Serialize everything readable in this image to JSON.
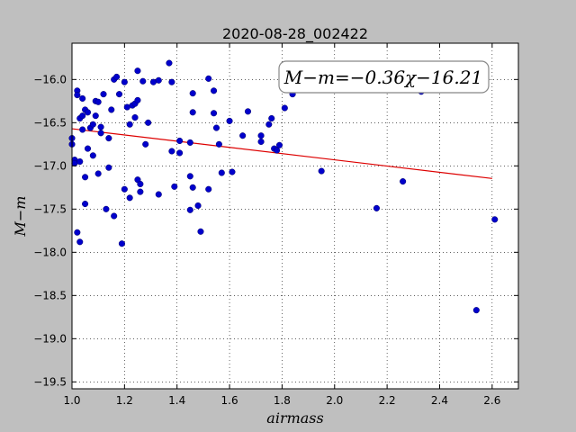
{
  "chart_data": {
    "type": "scatter",
    "title": "2020-08-28_002422",
    "xlabel": "airmass",
    "ylabel": "M−m",
    "xlim": [
      1.0,
      2.7
    ],
    "ylim": [
      -15.58,
      -19.58
    ],
    "x_tick_labels": [
      "1.0",
      "1.2",
      "1.4",
      "1.6",
      "1.8",
      "2.0",
      "2.2",
      "2.4",
      "2.6"
    ],
    "x_ticks": [
      1.0,
      1.2,
      1.4,
      1.6,
      1.8,
      2.0,
      2.2,
      2.4,
      2.6
    ],
    "y_tick_labels": [
      "−16.0",
      "−16.5",
      "−17.0",
      "−17.5",
      "−18.0",
      "−18.5",
      "−19.0",
      "−19.5"
    ],
    "y_ticks": [
      -16.0,
      -16.5,
      -17.0,
      -17.5,
      -18.0,
      -18.5,
      -19.0,
      -19.5
    ],
    "grid": true,
    "annotation": "M−m=−0.36χ−16.21",
    "fit": {
      "slope": -0.36,
      "intercept": -16.21,
      "x_range": [
        1.0,
        2.6
      ]
    },
    "colors": {
      "points": "#0000cc",
      "fit_line": "#dd0000",
      "background": "#bfbfbf",
      "axes_bg": "#ffffff"
    },
    "series": [
      {
        "points": [
          [
            1.0,
            -16.68
          ],
          [
            1.0,
            -16.75
          ],
          [
            1.01,
            -16.93
          ],
          [
            1.01,
            -16.97
          ],
          [
            1.02,
            -16.13
          ],
          [
            1.02,
            -16.18
          ],
          [
            1.02,
            -17.77
          ],
          [
            1.03,
            -17.88
          ],
          [
            1.03,
            -16.95
          ],
          [
            1.03,
            -16.45
          ],
          [
            1.04,
            -16.42
          ],
          [
            1.04,
            -16.22
          ],
          [
            1.04,
            -16.58
          ],
          [
            1.05,
            -16.35
          ],
          [
            1.05,
            -17.44
          ],
          [
            1.05,
            -17.13
          ],
          [
            1.06,
            -16.38
          ],
          [
            1.06,
            -16.8
          ],
          [
            1.07,
            -16.56
          ],
          [
            1.08,
            -16.52
          ],
          [
            1.08,
            -16.88
          ],
          [
            1.09,
            -16.25
          ],
          [
            1.09,
            -16.42
          ],
          [
            1.1,
            -16.26
          ],
          [
            1.1,
            -17.09
          ],
          [
            1.11,
            -16.62
          ],
          [
            1.11,
            -16.55
          ],
          [
            1.12,
            -16.17
          ],
          [
            1.13,
            -17.5
          ],
          [
            1.14,
            -16.68
          ],
          [
            1.14,
            -17.02
          ],
          [
            1.15,
            -16.35
          ],
          [
            1.16,
            -17.58
          ],
          [
            1.16,
            -16.0
          ],
          [
            1.17,
            -15.97
          ],
          [
            1.18,
            -16.17
          ],
          [
            1.19,
            -17.9
          ],
          [
            1.2,
            -16.03
          ],
          [
            1.2,
            -17.27
          ],
          [
            1.21,
            -16.32
          ],
          [
            1.22,
            -17.37
          ],
          [
            1.22,
            -16.52
          ],
          [
            1.23,
            -16.3
          ],
          [
            1.24,
            -16.28
          ],
          [
            1.24,
            -16.44
          ],
          [
            1.25,
            -16.24
          ],
          [
            1.25,
            -15.9
          ],
          [
            1.25,
            -17.16
          ],
          [
            1.26,
            -17.3
          ],
          [
            1.26,
            -17.21
          ],
          [
            1.27,
            -16.02
          ],
          [
            1.28,
            -16.75
          ],
          [
            1.29,
            -16.5
          ],
          [
            1.31,
            -16.03
          ],
          [
            1.33,
            -16.01
          ],
          [
            1.33,
            -17.33
          ],
          [
            1.37,
            -15.81
          ],
          [
            1.38,
            -16.83
          ],
          [
            1.38,
            -16.03
          ],
          [
            1.39,
            -17.24
          ],
          [
            1.41,
            -16.85
          ],
          [
            1.41,
            -16.71
          ],
          [
            1.45,
            -17.12
          ],
          [
            1.45,
            -16.73
          ],
          [
            1.45,
            -17.51
          ],
          [
            1.46,
            -16.16
          ],
          [
            1.46,
            -17.25
          ],
          [
            1.46,
            -16.38
          ],
          [
            1.48,
            -17.46
          ],
          [
            1.49,
            -17.76
          ],
          [
            1.52,
            -15.99
          ],
          [
            1.52,
            -17.27
          ],
          [
            1.54,
            -16.13
          ],
          [
            1.54,
            -16.39
          ],
          [
            1.55,
            -16.56
          ],
          [
            1.56,
            -16.75
          ],
          [
            1.57,
            -17.08
          ],
          [
            1.6,
            -16.48
          ],
          [
            1.61,
            -17.07
          ],
          [
            1.65,
            -16.65
          ],
          [
            1.67,
            -16.37
          ],
          [
            1.72,
            -16.65
          ],
          [
            1.72,
            -16.72
          ],
          [
            1.75,
            -16.52
          ],
          [
            1.76,
            -16.45
          ],
          [
            1.77,
            -16.8
          ],
          [
            1.78,
            -16.82
          ],
          [
            1.79,
            -16.76
          ],
          [
            1.81,
            -16.33
          ],
          [
            1.84,
            -16.17
          ],
          [
            1.95,
            -17.06
          ],
          [
            2.16,
            -17.49
          ],
          [
            2.26,
            -17.18
          ],
          [
            2.33,
            -16.14
          ],
          [
            2.54,
            -18.67
          ],
          [
            2.61,
            -17.62
          ]
        ]
      }
    ]
  }
}
